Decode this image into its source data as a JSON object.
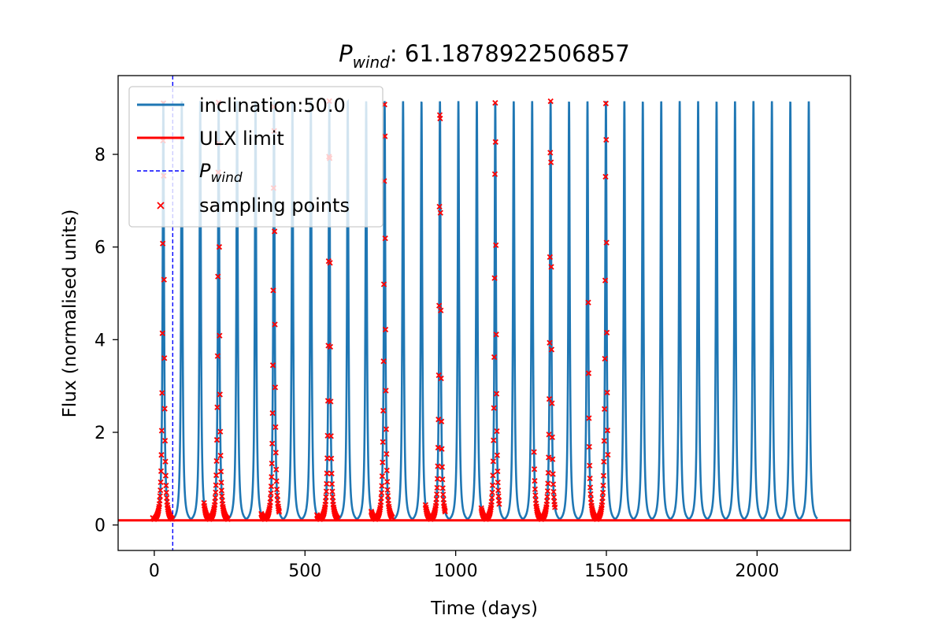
{
  "chart_data": {
    "type": "line",
    "title_symbol": "P",
    "title_subscript": "wind",
    "title_value": ": 61.1878922506857",
    "xlabel": "Time (days)",
    "ylabel": "Flux (normalised units)",
    "xlim": [
      -120,
      2310
    ],
    "ylim": [
      -0.55,
      9.7
    ],
    "xticks": [
      0,
      500,
      1000,
      1500,
      2000
    ],
    "yticks": [
      0,
      2,
      4,
      6,
      8
    ],
    "grid": false,
    "legend_placement": "upper-left",
    "lightcurve": {
      "name": "inclination:50.0",
      "color": "#1f77b4",
      "period_days": 61.1878922506857,
      "first_peak_day": 30,
      "t_start": 0,
      "t_end": 2200,
      "peak_flux": 9.15,
      "base_flux": 0.05,
      "peak_width_days": 2.8
    },
    "ulx_limit": {
      "name": "ULX limit",
      "value": 0.1,
      "color": "#ff0000"
    },
    "p_wind_line": {
      "symbol": "P",
      "subscript": "wind",
      "x": 61.1878922506857,
      "color": "#0000ff"
    },
    "sampling": {
      "name": "sampling points",
      "color": "#ff0000",
      "marker": "x",
      "windows": [
        [
          -5,
          60
        ],
        [
          165,
          245
        ],
        [
          355,
          415
        ],
        [
          540,
          610
        ],
        [
          720,
          790
        ],
        [
          900,
          965
        ],
        [
          1085,
          1145
        ],
        [
          1260,
          1330
        ],
        [
          1440,
          1505
        ]
      ],
      "step_days": 1.1
    },
    "legend": [
      {
        "label": "inclination:50.0",
        "kind": "line",
        "color": "#1f77b4"
      },
      {
        "label": "ULX limit",
        "kind": "line",
        "color": "#ff0000"
      },
      {
        "label_symbol": "P",
        "label_subscript": "wind",
        "kind": "dashed",
        "color": "#0000ff"
      },
      {
        "label": "sampling points",
        "kind": "marker",
        "color": "#ff0000"
      }
    ]
  }
}
